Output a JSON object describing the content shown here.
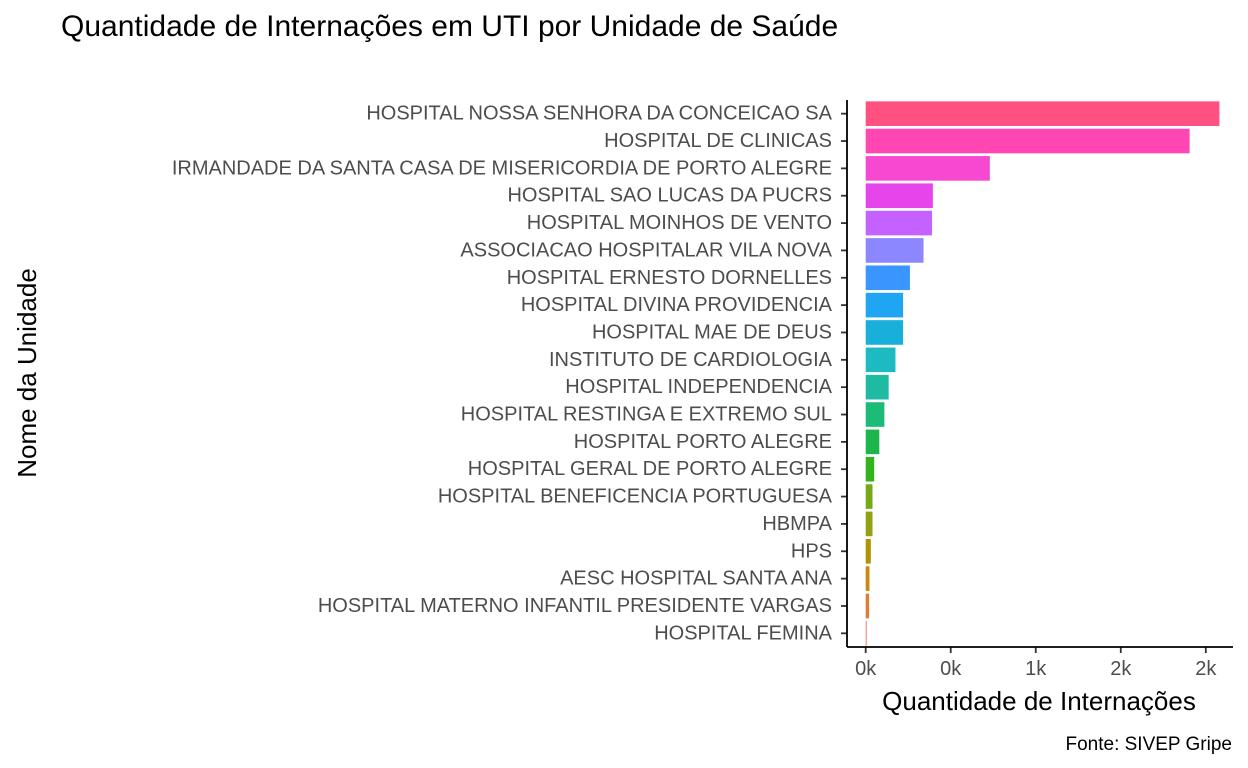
{
  "chart_data": {
    "type": "bar",
    "orientation": "horizontal",
    "title": "Quantidade de Internações em UTI por Unidade de Saúde",
    "xlabel": "Quantidade de Internações",
    "ylabel": "Nome da Unidade",
    "caption": "Fonte: SIVEP Gripe",
    "categories": [
      "HOSPITAL NOSSA SENHORA DA CONCEICAO SA",
      "HOSPITAL DE CLINICAS",
      "IRMANDADE DA SANTA CASA DE MISERICORDIA DE PORTO ALEGRE",
      "HOSPITAL SAO LUCAS DA PUCRS",
      "HOSPITAL MOINHOS DE VENTO",
      "ASSOCIACAO HOSPITALAR VILA NOVA",
      "HOSPITAL ERNESTO DORNELLES",
      "HOSPITAL DIVINA PROVIDENCIA",
      "HOSPITAL MAE DE DEUS",
      "INSTITUTO DE CARDIOLOGIA",
      "HOSPITAL INDEPENDENCIA",
      "HOSPITAL RESTINGA E EXTREMO SUL",
      "HOSPITAL PORTO ALEGRE",
      "HOSPITAL GERAL DE PORTO ALEGRE",
      "HOSPITAL BENEFICENCIA PORTUGUESA",
      "HBMPA",
      "HPS",
      "AESC HOSPITAL SANTA ANA",
      "HOSPITAL MATERNO INFANTIL PRESIDENTE VARGAS",
      "HOSPITAL FEMINA"
    ],
    "values": [
      2080,
      1905,
      730,
      395,
      390,
      340,
      260,
      220,
      220,
      175,
      135,
      110,
      80,
      50,
      40,
      40,
      30,
      22,
      20,
      2
    ],
    "colors": [
      "#FF5181",
      "#FF46B3",
      "#F748D2",
      "#E545EB",
      "#C561FF",
      "#8C86FF",
      "#3A95FF",
      "#1FA5F2",
      "#19AFDB",
      "#1DBBC1",
      "#1EBBA2",
      "#1CBB78",
      "#1CB64C",
      "#33B41F",
      "#77A81A",
      "#92A112",
      "#B09300",
      "#CF8512",
      "#E27A30",
      "#F6746E"
    ],
    "xticks": [
      0,
      500,
      1000,
      1500,
      2000
    ],
    "xtick_labels": [
      "0k",
      "0k",
      "1k",
      "2k",
      "2k"
    ],
    "xlim": [
      -110,
      2160
    ],
    "grid": false,
    "legend": "none"
  }
}
